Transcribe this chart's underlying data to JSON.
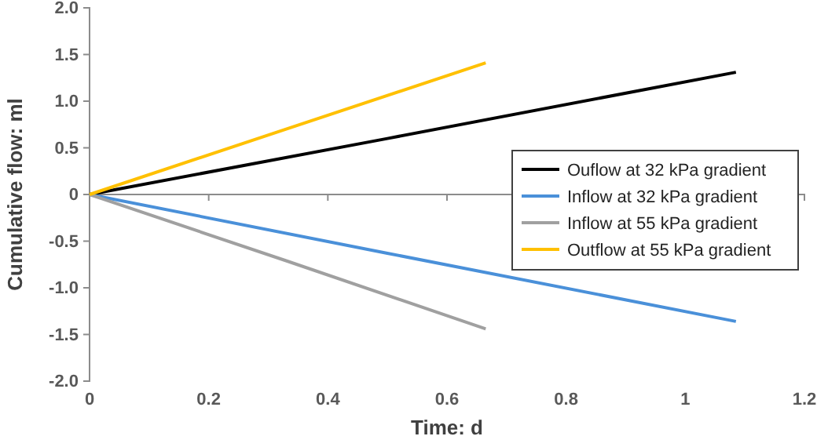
{
  "chart_data": {
    "type": "line",
    "xlabel": "Time: d",
    "ylabel": "Cumulative flow: ml",
    "xlim": [
      0,
      1.2
    ],
    "xticks": [
      0,
      0.2,
      0.4,
      0.6,
      0.8,
      1,
      1.2
    ],
    "ylim": [
      -2,
      2
    ],
    "yticks": [
      {
        "value": -2,
        "label": "-2.0"
      },
      {
        "value": -1.5,
        "label": "-1.5"
      },
      {
        "value": -1,
        "label": "-1.0"
      },
      {
        "value": -0.5,
        "label": "-0.5"
      },
      {
        "value": 0,
        "label": "0"
      },
      {
        "value": 0.5,
        "label": "0.5"
      },
      {
        "value": 1,
        "label": "1.0"
      },
      {
        "value": 1.5,
        "label": "1.5"
      },
      {
        "value": 2,
        "label": "2.0"
      }
    ],
    "grid": false,
    "legend": "right",
    "marker": "none",
    "line_style": "solid",
    "series": [
      {
        "name": "Ouflow at 32 kPa gradient",
        "color": "#000000",
        "x": [
          0,
          0.5,
          1.085
        ],
        "values": [
          0,
          0.6,
          1.31
        ]
      },
      {
        "name": "Inflow at 32 kPa gradient",
        "color": "#4a90d9",
        "x": [
          0,
          0.5,
          1.085
        ],
        "values": [
          0,
          -0.63,
          -1.36
        ]
      },
      {
        "name": "Inflow at 55 kPa gradient",
        "color": "#a0a0a0",
        "x": [
          0,
          0.33,
          0.665
        ],
        "values": [
          0,
          -0.71,
          -1.44
        ]
      },
      {
        "name": "Outflow at 55 kPa gradient",
        "color": "#ffc000",
        "x": [
          0,
          0.33,
          0.665
        ],
        "values": [
          0,
          0.7,
          1.41
        ]
      }
    ]
  }
}
